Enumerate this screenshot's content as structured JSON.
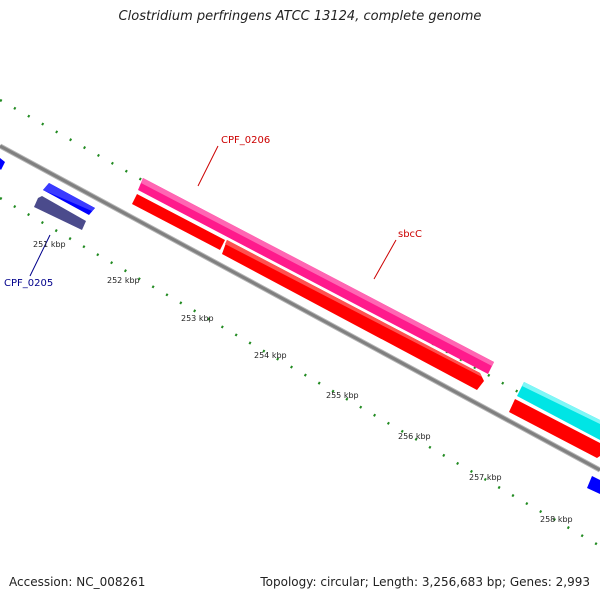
{
  "title": "Clostridium perfringens ATCC 13124, complete genome",
  "footer": {
    "accession": "Accession: NC_008261",
    "summary": "Topology: circular; Length: 3,256,683 bp; Genes: 2,993"
  },
  "ticks": [
    {
      "label": "251 kbp"
    },
    {
      "label": "252 kbp"
    },
    {
      "label": "253 kbp"
    },
    {
      "label": "254 kbp"
    },
    {
      "label": "255 kbp"
    },
    {
      "label": "256 kbp"
    },
    {
      "label": "257 kbp"
    },
    {
      "label": "258 kbp"
    }
  ],
  "genes": [
    {
      "label": "CPF_0205",
      "color": "#00008b"
    },
    {
      "label": "CPF_0206",
      "color": "#cc0000"
    },
    {
      "label": "sbcC",
      "color": "#cc0000"
    }
  ],
  "colors": {
    "backbone": "#808080",
    "scale": "#228b22",
    "forward_cds": "#0000ff",
    "reverse_cds": "#ff0000",
    "magenta_feature": "#ff1a8c",
    "cyan_feature": "#00e5e5",
    "slate_feature": "#4b4b8c"
  }
}
